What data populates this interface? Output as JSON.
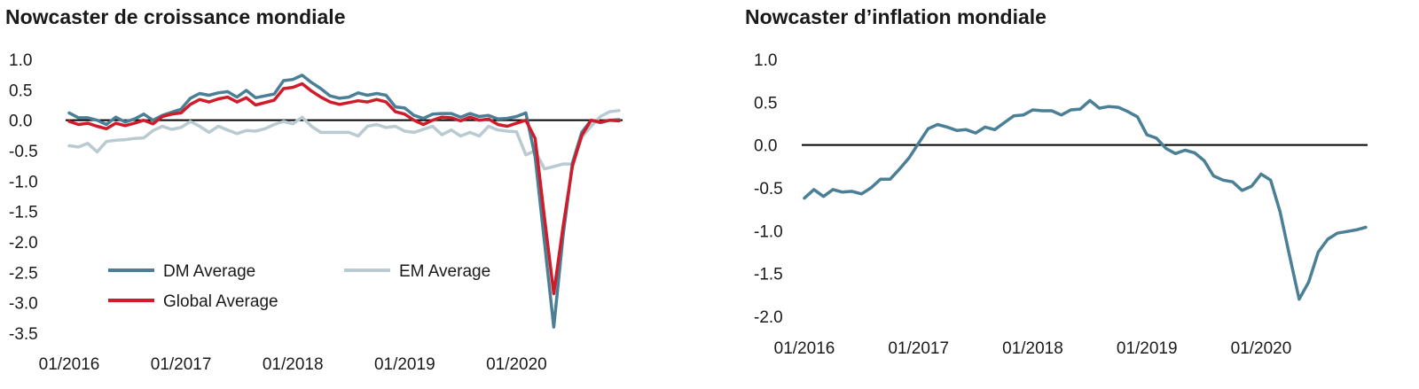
{
  "chart_data": [
    {
      "type": "line",
      "title": "Nowcaster de croissance mondiale",
      "xlabel": "",
      "ylabel": "",
      "ylim": [
        -3.5,
        1.0
      ],
      "yticks": [
        "1.0",
        "0.5",
        "0.0",
        "-0.5",
        "-1.0",
        "-1.5",
        "-2.0",
        "-2.5",
        "-3.0",
        "-3.5"
      ],
      "xticks": [
        "01/2016",
        "01/2017",
        "01/2018",
        "01/2019",
        "01/2020"
      ],
      "legend_position": "bottom-left",
      "grid": false,
      "months": [
        "01/2016",
        "02/2016",
        "03/2016",
        "04/2016",
        "05/2016",
        "06/2016",
        "07/2016",
        "08/2016",
        "09/2016",
        "10/2016",
        "11/2016",
        "12/2016",
        "01/2017",
        "02/2017",
        "03/2017",
        "04/2017",
        "05/2017",
        "06/2017",
        "07/2017",
        "08/2017",
        "09/2017",
        "10/2017",
        "11/2017",
        "12/2017",
        "01/2018",
        "02/2018",
        "03/2018",
        "04/2018",
        "05/2018",
        "06/2018",
        "07/2018",
        "08/2018",
        "09/2018",
        "10/2018",
        "11/2018",
        "12/2018",
        "01/2019",
        "02/2019",
        "03/2019",
        "04/2019",
        "05/2019",
        "06/2019",
        "07/2019",
        "08/2019",
        "09/2019",
        "10/2019",
        "11/2019",
        "12/2019",
        "01/2020",
        "02/2020",
        "03/2020",
        "04/2020",
        "05/2020",
        "06/2020",
        "07/2020",
        "08/2020",
        "09/2020",
        "10/2020",
        "11/2020",
        "12/2020"
      ],
      "series": [
        {
          "name": "DM Average",
          "color": "#4a7f96",
          "values": [
            0.12,
            0.04,
            0.04,
            0.0,
            -0.07,
            0.05,
            -0.03,
            0.02,
            0.1,
            0.0,
            0.08,
            0.13,
            0.18,
            0.36,
            0.44,
            0.41,
            0.45,
            0.47,
            0.38,
            0.49,
            0.37,
            0.4,
            0.43,
            0.65,
            0.67,
            0.74,
            0.62,
            0.52,
            0.4,
            0.36,
            0.38,
            0.45,
            0.41,
            0.44,
            0.41,
            0.22,
            0.2,
            0.08,
            0.03,
            0.1,
            0.11,
            0.11,
            0.05,
            0.11,
            0.06,
            0.08,
            0.02,
            0.03,
            0.06,
            0.12,
            -0.6,
            -2.0,
            -3.4,
            -1.9,
            -0.7,
            -0.2,
            0.0,
            -0.04,
            0.0,
            0.01
          ]
        },
        {
          "name": "EM Average",
          "color": "#b9cbd1",
          "values": [
            -0.42,
            -0.44,
            -0.38,
            -0.52,
            -0.35,
            -0.33,
            -0.32,
            -0.3,
            -0.29,
            -0.17,
            -0.1,
            -0.15,
            -0.12,
            -0.02,
            -0.1,
            -0.2,
            -0.1,
            -0.16,
            -0.22,
            -0.17,
            -0.18,
            -0.14,
            -0.07,
            -0.02,
            -0.06,
            0.05,
            -0.1,
            -0.2,
            -0.2,
            -0.2,
            -0.2,
            -0.26,
            -0.1,
            -0.07,
            -0.12,
            -0.1,
            -0.18,
            -0.2,
            -0.15,
            -0.1,
            -0.24,
            -0.16,
            -0.26,
            -0.2,
            -0.26,
            -0.1,
            -0.16,
            -0.18,
            -0.19,
            -0.57,
            -0.5,
            -0.8,
            -0.76,
            -0.72,
            -0.72,
            -0.28,
            -0.1,
            0.06,
            0.14,
            0.16
          ]
        },
        {
          "name": "Global Average",
          "color": "#d01c2a",
          "values": [
            -0.02,
            -0.07,
            -0.05,
            -0.1,
            -0.14,
            -0.05,
            -0.09,
            -0.05,
            0.0,
            -0.06,
            0.06,
            0.1,
            0.12,
            0.26,
            0.34,
            0.3,
            0.35,
            0.38,
            0.3,
            0.37,
            0.25,
            0.29,
            0.33,
            0.52,
            0.54,
            0.6,
            0.48,
            0.38,
            0.3,
            0.26,
            0.29,
            0.32,
            0.3,
            0.34,
            0.3,
            0.14,
            0.1,
            0.0,
            -0.07,
            0.0,
            0.05,
            0.04,
            -0.01,
            0.05,
            0.0,
            0.02,
            -0.07,
            -0.1,
            -0.05,
            0.0,
            -0.3,
            -1.6,
            -2.85,
            -1.75,
            -0.75,
            -0.25,
            0.0,
            -0.03,
            0.0,
            -0.01
          ]
        }
      ]
    },
    {
      "type": "line",
      "title": "Nowcaster d’inflation mondiale",
      "xlabel": "",
      "ylabel": "",
      "ylim": [
        -2.0,
        1.0
      ],
      "yticks": [
        "1.0",
        "0.5",
        "0.0",
        "-0.5",
        "-1.0",
        "-1.5",
        "-2.0"
      ],
      "xticks": [
        "01/2016",
        "01/2017",
        "01/2018",
        "01/2019",
        "01/2020"
      ],
      "grid": false,
      "months": [
        "01/2016",
        "02/2016",
        "03/2016",
        "04/2016",
        "05/2016",
        "06/2016",
        "07/2016",
        "08/2016",
        "09/2016",
        "10/2016",
        "11/2016",
        "12/2016",
        "01/2017",
        "02/2017",
        "03/2017",
        "04/2017",
        "05/2017",
        "06/2017",
        "07/2017",
        "08/2017",
        "09/2017",
        "10/2017",
        "11/2017",
        "12/2017",
        "01/2018",
        "02/2018",
        "03/2018",
        "04/2018",
        "05/2018",
        "06/2018",
        "07/2018",
        "08/2018",
        "09/2018",
        "10/2018",
        "11/2018",
        "12/2018",
        "01/2019",
        "02/2019",
        "03/2019",
        "04/2019",
        "05/2019",
        "06/2019",
        "07/2019",
        "08/2019",
        "09/2019",
        "10/2019",
        "11/2019",
        "12/2019",
        "01/2020",
        "02/2020",
        "03/2020",
        "04/2020",
        "05/2020",
        "06/2020",
        "07/2020",
        "08/2020",
        "09/2020",
        "10/2020",
        "11/2020",
        "12/2020"
      ],
      "series": [
        {
          "name": "",
          "color": "#4a7f96",
          "values": [
            -0.62,
            -0.52,
            -0.6,
            -0.52,
            -0.55,
            -0.54,
            -0.57,
            -0.5,
            -0.4,
            -0.4,
            -0.28,
            -0.15,
            0.02,
            0.19,
            0.24,
            0.21,
            0.17,
            0.18,
            0.14,
            0.21,
            0.18,
            0.26,
            0.34,
            0.35,
            0.41,
            0.4,
            0.4,
            0.35,
            0.41,
            0.42,
            0.52,
            0.43,
            0.45,
            0.44,
            0.39,
            0.33,
            0.12,
            0.08,
            -0.04,
            -0.1,
            -0.06,
            -0.09,
            -0.18,
            -0.36,
            -0.41,
            -0.43,
            -0.53,
            -0.48,
            -0.34,
            -0.41,
            -0.78,
            -1.3,
            -1.8,
            -1.6,
            -1.25,
            -1.1,
            -1.03,
            -1.01,
            -0.99,
            -0.96
          ]
        }
      ]
    }
  ]
}
